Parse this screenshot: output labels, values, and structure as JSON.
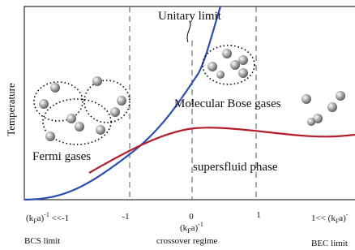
{
  "title": "Unitary limit",
  "y_axis_label": "Temperature",
  "regions": {
    "molecular": "Molecular Bose gases",
    "fermi": "Fermi gases",
    "superfluid": "supersfluid phase"
  },
  "x_labels": [
    {
      "open": "(k",
      "sub": "F",
      "close": "a)",
      "sup": "-1",
      "tail": " <<-1"
    },
    {
      "text": "-1"
    },
    {
      "text": "0"
    },
    {
      "text": "1"
    },
    {
      "head": "1<< ",
      "open": "(k",
      "sub": "F",
      "close": "a)",
      "sup": "-"
    }
  ],
  "center_label": {
    "open": "(k",
    "sub": "F",
    "close": "a)",
    "sup": "-1"
  },
  "limits": {
    "bcs": "BCS limit",
    "crossover": "crossover regime",
    "bec": "BEC limit"
  }
}
